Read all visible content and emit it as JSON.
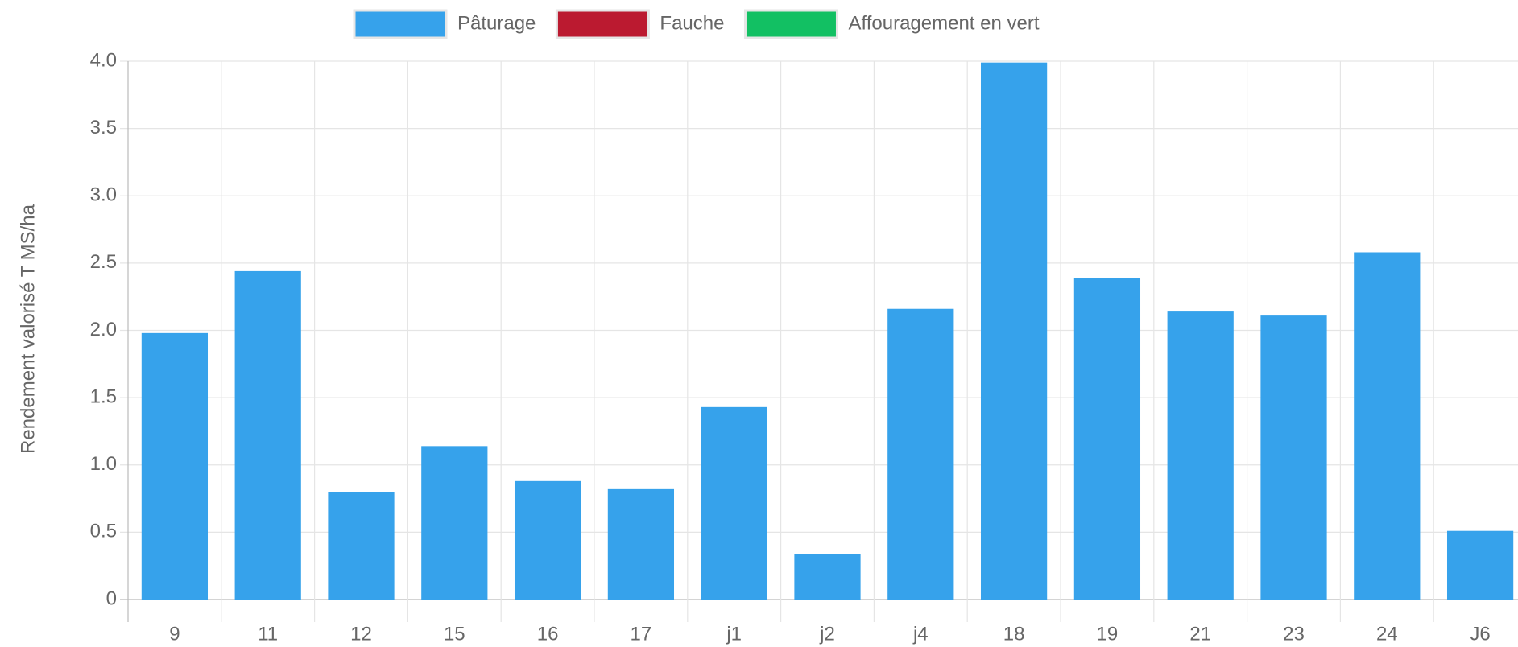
{
  "chart_data": {
    "type": "bar",
    "stacked": true,
    "y_label": "Rendement valorisé T MS/ha",
    "categories": [
      "9",
      "11",
      "12",
      "15",
      "16",
      "17",
      "j1",
      "j2",
      "j4",
      "18",
      "19",
      "21",
      "23",
      "24",
      "J6"
    ],
    "series": [
      {
        "name": "Pâturage",
        "color": "#36a2eb",
        "values": [
          1.98,
          2.44,
          0.8,
          1.14,
          0.88,
          0.82,
          1.43,
          0.34,
          2.16,
          3.99,
          2.39,
          2.14,
          2.11,
          2.58,
          0.51
        ]
      },
      {
        "name": "Fauche",
        "color": "#bb1a30",
        "values": [
          0,
          0,
          0,
          0,
          0,
          0,
          0,
          0,
          0,
          0,
          0,
          0,
          0,
          0,
          0
        ]
      },
      {
        "name": "Affouragement en vert",
        "color": "#12c063",
        "values": [
          0,
          0,
          0,
          0,
          0,
          0,
          0,
          0,
          0,
          0,
          0,
          0,
          0,
          0,
          0
        ]
      }
    ],
    "ylim": [
      0,
      4
    ],
    "yticks": [
      0,
      0.5,
      {
        "value": 1,
        "label": "1.0"
      },
      1.5,
      {
        "value": 2,
        "label": "2.0"
      },
      2.5,
      {
        "value": 3,
        "label": "3.0"
      },
      3.5,
      {
        "value": 4,
        "label": "4.0"
      }
    ],
    "grid": true,
    "legend": "top"
  }
}
